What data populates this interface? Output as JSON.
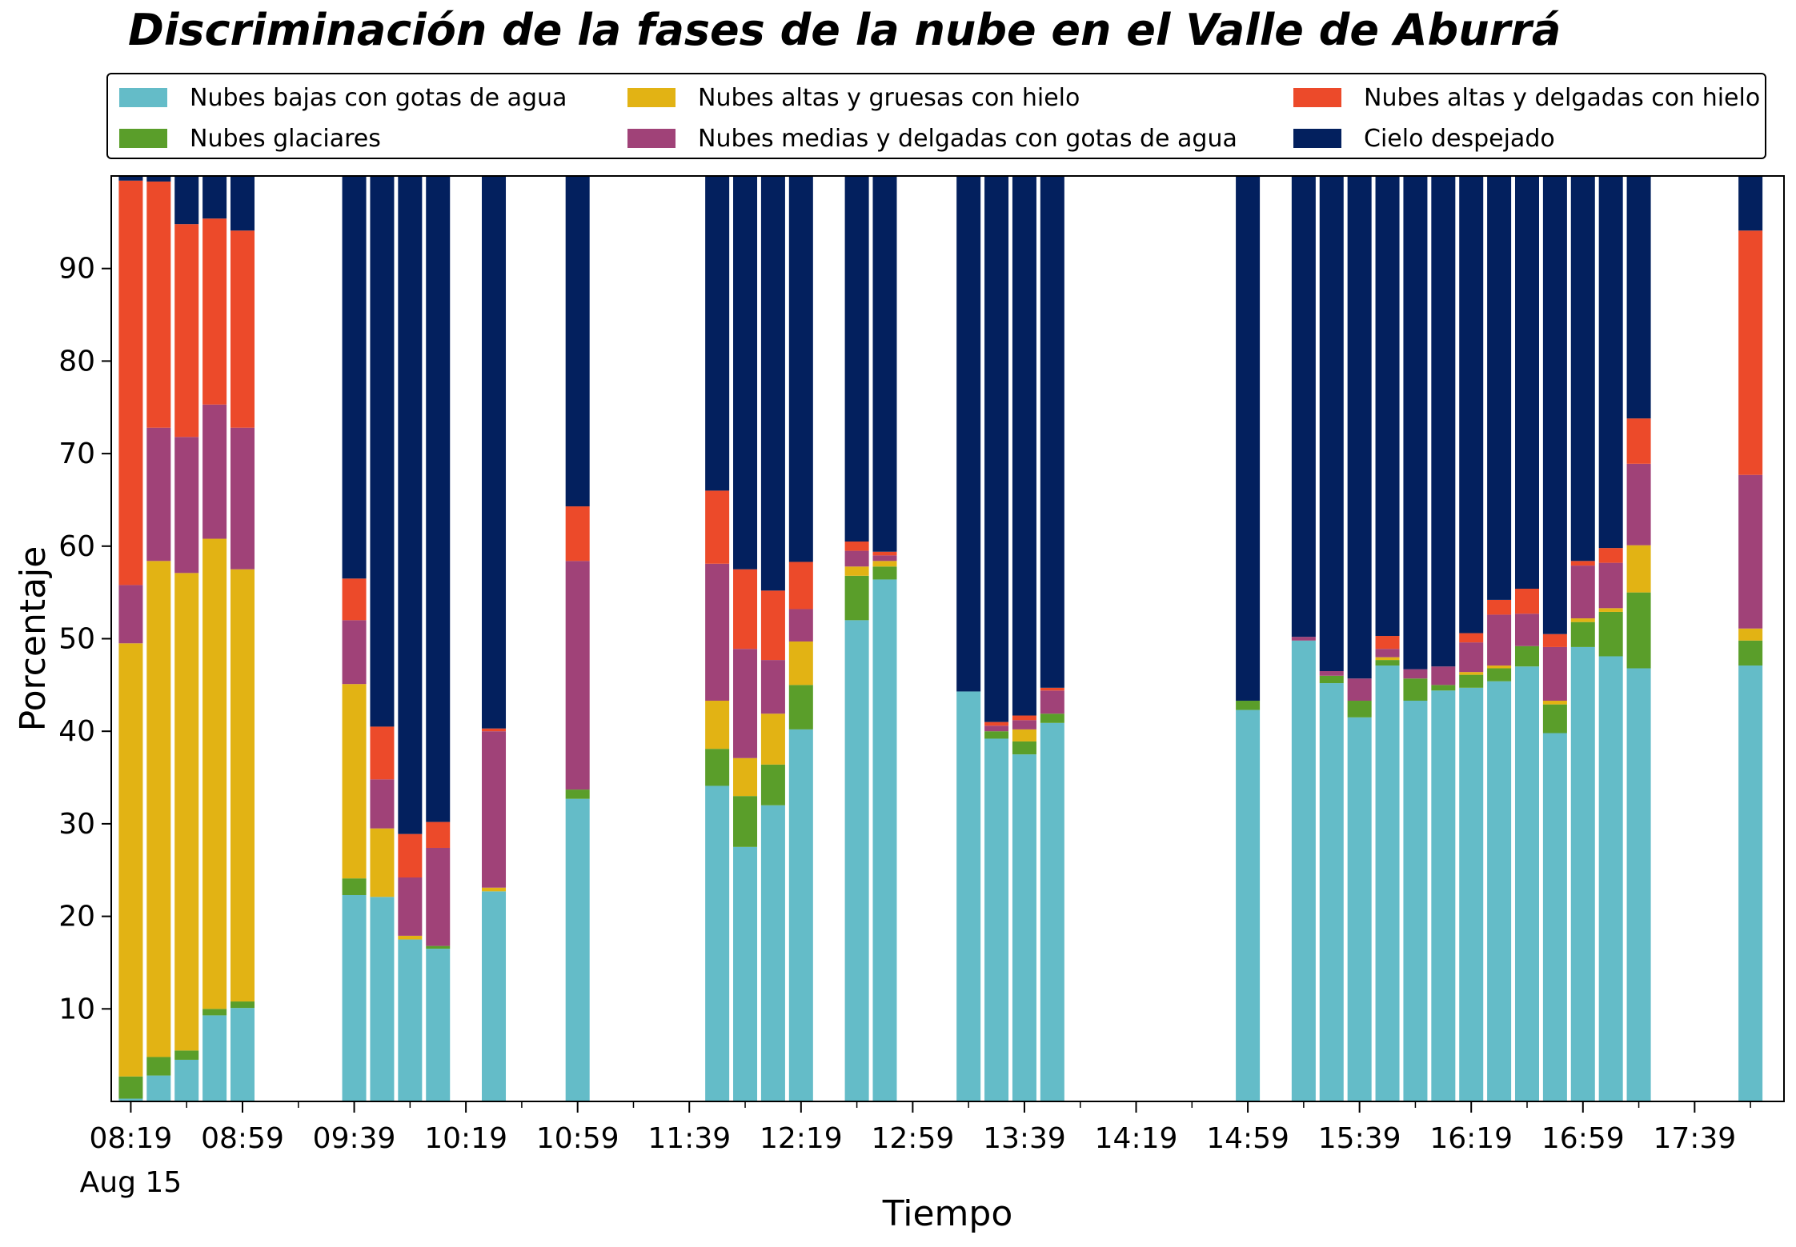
{
  "chart_data": {
    "type": "bar",
    "stacked": true,
    "title": "Discriminación de la fases de la nube en el Valle de Aburrá",
    "xlabel": "Tiempo",
    "ylabel": "Porcentaje",
    "ylim": [
      0,
      100
    ],
    "xlim": [
      "08:12",
      "18:11"
    ],
    "bar_width_minutes": 8.6,
    "yticks": [
      10,
      20,
      30,
      40,
      50,
      60,
      70,
      80,
      90
    ],
    "xtick_labels": [
      "08:19",
      "08:59",
      "09:39",
      "10:19",
      "10:59",
      "11:39",
      "12:19",
      "12:59",
      "13:39",
      "14:19",
      "14:59",
      "15:39",
      "16:19",
      "16:59",
      "17:39"
    ],
    "xtick_sublabel": "Aug 15",
    "minor_xticks": [
      "08:39",
      "09:19",
      "09:59",
      "10:39",
      "11:19",
      "11:59",
      "12:39",
      "13:19",
      "13:59",
      "14:39",
      "15:19",
      "15:59",
      "16:39",
      "17:19",
      "17:59"
    ],
    "grid": false,
    "legend_position": "top",
    "x": [
      "08:19",
      "08:29",
      "08:39",
      "08:49",
      "08:59",
      "09:39",
      "09:49",
      "09:59",
      "10:09",
      "10:29",
      "10:59",
      "11:49",
      "11:59",
      "12:09",
      "12:19",
      "12:39",
      "12:49",
      "13:19",
      "13:29",
      "13:39",
      "13:49",
      "14:59",
      "15:19",
      "15:29",
      "15:39",
      "15:49",
      "15:59",
      "16:09",
      "16:19",
      "16:29",
      "16:39",
      "16:49",
      "16:59",
      "17:09",
      "17:19",
      "17:59"
    ],
    "series": [
      {
        "name": "Nubes bajas con gotas de agua",
        "color": "#64BCC8",
        "values": [
          0.3,
          2.8,
          4.5,
          9.3,
          10.1,
          22.3,
          22.1,
          17.5,
          16.5,
          22.7,
          32.7,
          34.1,
          27.5,
          32.0,
          40.2,
          52.0,
          56.4,
          44.3,
          39.2,
          37.5,
          40.9,
          42.3,
          49.8,
          45.2,
          41.5,
          47.1,
          43.3,
          44.4,
          44.7,
          45.4,
          47.0,
          39.8,
          49.1,
          48.1,
          46.8,
          47.1
        ]
      },
      {
        "name": "Nubes glaciares",
        "color": "#5A9E2A",
        "values": [
          2.4,
          2.0,
          1.0,
          0.7,
          0.7,
          1.8,
          0.0,
          0.0,
          0.3,
          0.0,
          1.0,
          4.0,
          5.5,
          4.4,
          4.8,
          4.8,
          1.4,
          0.0,
          0.8,
          1.4,
          1.0,
          1.0,
          0.0,
          0.8,
          1.8,
          0.6,
          2.4,
          0.6,
          1.4,
          1.4,
          2.2,
          3.1,
          2.7,
          4.8,
          8.2,
          2.7
        ]
      },
      {
        "name": "Nubes altas y gruesas con hielo",
        "color": "#E2B314",
        "values": [
          46.8,
          53.6,
          51.6,
          50.8,
          46.7,
          21.0,
          7.4,
          0.4,
          0.0,
          0.4,
          0.0,
          5.2,
          4.1,
          5.5,
          4.7,
          1.0,
          0.6,
          0.0,
          0.0,
          1.3,
          0.0,
          0.0,
          0.0,
          0.0,
          0.0,
          0.3,
          0.0,
          0.0,
          0.3,
          0.3,
          0.0,
          0.4,
          0.4,
          0.4,
          5.1,
          1.3
        ]
      },
      {
        "name": "Nubes medias y delgadas con gotas de agua",
        "color": "#A04278",
        "values": [
          6.3,
          14.4,
          14.7,
          14.5,
          15.3,
          6.9,
          5.3,
          6.3,
          10.6,
          16.9,
          24.7,
          14.8,
          11.8,
          5.8,
          3.5,
          1.7,
          0.6,
          0.0,
          0.6,
          1.0,
          2.5,
          0.0,
          0.4,
          0.5,
          2.4,
          0.9,
          1.0,
          2.0,
          3.2,
          5.5,
          3.5,
          5.8,
          5.7,
          4.9,
          8.8,
          16.6
        ]
      },
      {
        "name": "Nubes altas y delgadas con hielo",
        "color": "#EC4A2A",
        "values": [
          43.7,
          26.6,
          23.0,
          20.1,
          21.3,
          4.5,
          5.7,
          4.7,
          2.8,
          0.3,
          5.9,
          7.9,
          8.6,
          7.5,
          5.1,
          1.0,
          0.4,
          0.0,
          0.4,
          0.5,
          0.3,
          0.0,
          0.0,
          0.0,
          0.0,
          1.4,
          0.0,
          0.0,
          1.0,
          1.6,
          2.7,
          1.4,
          0.5,
          1.6,
          4.9,
          26.4
        ]
      },
      {
        "name": "Cielo despejado",
        "color": "#03205E",
        "values": [
          0.5,
          0.6,
          5.2,
          4.6,
          5.9,
          43.5,
          59.5,
          71.1,
          69.8,
          59.7,
          35.7,
          34.0,
          42.5,
          44.8,
          41.7,
          39.5,
          40.6,
          55.7,
          59.0,
          58.3,
          55.3,
          56.7,
          49.8,
          53.5,
          54.3,
          49.7,
          53.3,
          53.0,
          49.4,
          45.8,
          44.6,
          49.5,
          41.6,
          40.2,
          26.2,
          5.9
        ]
      }
    ]
  }
}
